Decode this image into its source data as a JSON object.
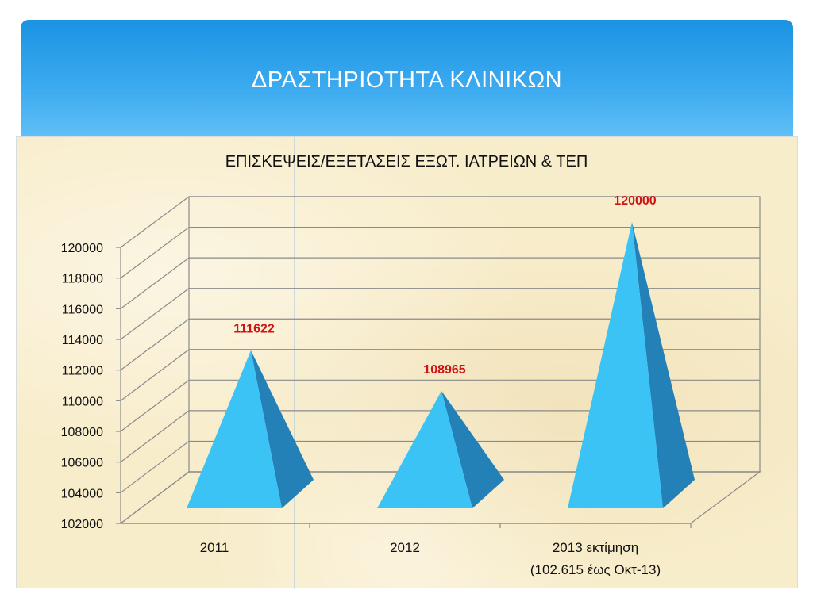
{
  "slide": {
    "title": "ΔΡΑΣΤΗΡΙΟΤΗΤΑ ΚΛΙΝΙΚΩΝ"
  },
  "chart_data": {
    "type": "bar",
    "style": "3d-pyramid",
    "title": "ΕΠΙΣΚΕΨΕΙΣ/ΕΞΕΤΑΣΕΙΣ ΕΞΩΤ. ΙΑΤΡΕΙΩΝ & ΤΕΠ",
    "categories": [
      [
        "2011"
      ],
      [
        "2012"
      ],
      [
        "2013 εκτίμηση",
        "(102.615 έως Οκτ-13)"
      ]
    ],
    "values": [
      111622,
      108965,
      120000
    ],
    "data_labels": [
      "111622",
      "108965",
      "120000"
    ],
    "ylim": [
      102000,
      120000
    ],
    "y_ticks": [
      "102000",
      "104000",
      "106000",
      "108000",
      "110000",
      "112000",
      "114000",
      "116000",
      "118000",
      "120000"
    ],
    "grid": true,
    "legend": "none",
    "colors": {
      "pyramid_front": "#3bc3f6",
      "pyramid_side": "#2381b8",
      "label": "#d11212",
      "grid": "#8a8a8a"
    }
  }
}
